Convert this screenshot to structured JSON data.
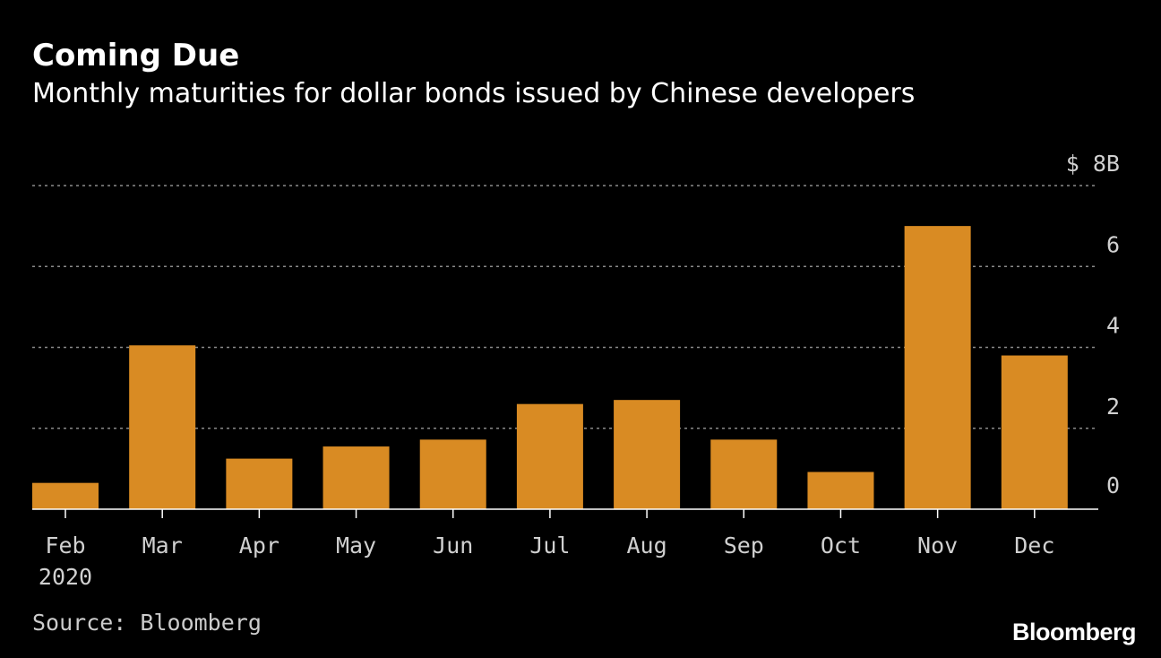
{
  "header": {
    "title": "Coming Due",
    "subtitle": "Monthly maturities for dollar bonds issued by Chinese developers"
  },
  "footer": {
    "source": "Source: Bloomberg",
    "logo": "Bloomberg"
  },
  "colors": {
    "background": "#000000",
    "bar": "#d98b23",
    "text": "#ffffff",
    "axis_text": "#d0d0d0",
    "grid": "#8a8a8a"
  },
  "chart_data": {
    "type": "bar",
    "title": "Coming Due",
    "subtitle": "Monthly maturities for dollar bonds issued by Chinese developers",
    "categories": [
      "Feb",
      "Mar",
      "Apr",
      "May",
      "Jun",
      "Jul",
      "Aug",
      "Sep",
      "Oct",
      "Nov",
      "Dec"
    ],
    "category_sublabels": [
      "2020",
      "",
      "",
      "",
      "",
      "",
      "",
      "",
      "",
      "",
      ""
    ],
    "values": [
      0.65,
      4.05,
      1.25,
      1.55,
      1.72,
      2.6,
      2.7,
      1.72,
      0.92,
      7.0,
      3.8
    ],
    "yticks": [
      0,
      2,
      4,
      6,
      8
    ],
    "ytick_labels": [
      "0",
      "2",
      "4",
      "6",
      "$ 8B"
    ],
    "ylim": [
      0,
      8
    ],
    "unit": "$ B",
    "grid": true,
    "grid_style": "dotted",
    "yaxis_position": "right"
  }
}
